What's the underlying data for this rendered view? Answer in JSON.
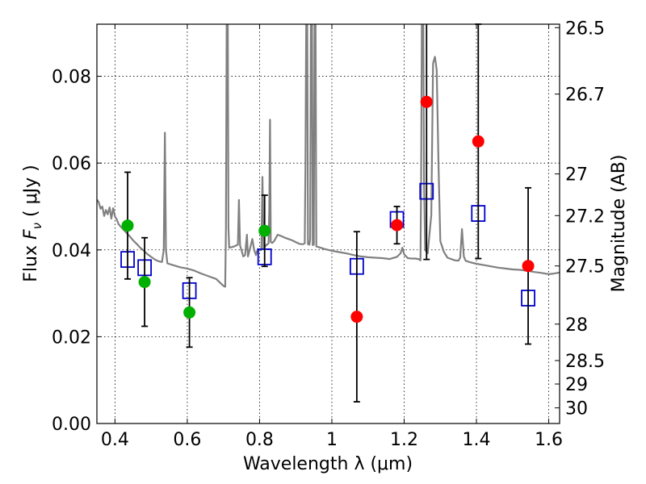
{
  "chart_data": {
    "type": "scatter",
    "xlabel": "Wavelength  λ (μm)",
    "ylabel_prefix": "Flux  ",
    "ylabel_var": "F",
    "ylabel_sub": "ν",
    "ylabel_suffix": "  ( μJy )",
    "y2label": "Magnitude (AB)",
    "xlim": [
      0.35,
      1.63
    ],
    "ylim": [
      0.0,
      0.092
    ],
    "grid": true,
    "xticks": [
      0.4,
      0.6,
      0.8,
      1.0,
      1.2,
      1.4,
      1.6
    ],
    "xtick_labels": [
      "0.4",
      "0.6",
      "0.8",
      "1",
      "1.2",
      "1.4",
      "1.6"
    ],
    "yticks": [
      0.0,
      0.02,
      0.04,
      0.06,
      0.08
    ],
    "ytick_labels": [
      "0.00",
      "0.02",
      "0.04",
      "0.06",
      "0.08"
    ],
    "mag_ticks": [
      {
        "label": "26.5",
        "flux": 0.0912
      },
      {
        "label": "26.7",
        "flux": 0.0759
      },
      {
        "label": "27",
        "flux": 0.0575
      },
      {
        "label": "27.2",
        "flux": 0.0479
      },
      {
        "label": "27.5",
        "flux": 0.0363
      },
      {
        "label": "28",
        "flux": 0.0229
      },
      {
        "label": "28.5",
        "flux": 0.0145
      },
      {
        "label": "29",
        "flux": 0.0091
      },
      {
        "label": "30",
        "flux": 0.0036
      }
    ],
    "series": [
      {
        "name": "model spectrum",
        "kind": "line",
        "color": "#808080",
        "points": [
          [
            0.35,
            0.0516
          ],
          [
            0.355,
            0.051
          ],
          [
            0.36,
            0.0495
          ],
          [
            0.365,
            0.05
          ],
          [
            0.37,
            0.0478
          ],
          [
            0.375,
            0.0492
          ],
          [
            0.38,
            0.0482
          ],
          [
            0.385,
            0.0498
          ],
          [
            0.39,
            0.0472
          ],
          [
            0.395,
            0.0496
          ],
          [
            0.4,
            0.0477
          ],
          [
            0.405,
            0.047
          ],
          [
            0.41,
            0.0459
          ],
          [
            0.42,
            0.045
          ],
          [
            0.43,
            0.0441
          ],
          [
            0.44,
            0.0432
          ],
          [
            0.45,
            0.0422
          ],
          [
            0.46,
            0.0414
          ],
          [
            0.47,
            0.0405
          ],
          [
            0.48,
            0.0398
          ],
          [
            0.49,
            0.039
          ],
          [
            0.5,
            0.0384
          ],
          [
            0.51,
            0.0378
          ],
          [
            0.52,
            0.0374
          ],
          [
            0.53,
            0.0372
          ],
          [
            0.535,
            0.04
          ],
          [
            0.538,
            0.067
          ],
          [
            0.541,
            0.04
          ],
          [
            0.545,
            0.0369
          ],
          [
            0.56,
            0.0365
          ],
          [
            0.58,
            0.036
          ],
          [
            0.6,
            0.0357
          ],
          [
            0.62,
            0.0352
          ],
          [
            0.64,
            0.0345
          ],
          [
            0.66,
            0.0339
          ],
          [
            0.68,
            0.0333
          ],
          [
            0.7,
            0.0317
          ],
          [
            0.705,
            0.0315
          ],
          [
            0.707,
            0.045
          ],
          [
            0.709,
            0.092
          ],
          [
            0.712,
            0.092
          ],
          [
            0.714,
            0.045
          ],
          [
            0.716,
            0.0405
          ],
          [
            0.73,
            0.0408
          ],
          [
            0.74,
            0.0412
          ],
          [
            0.743,
            0.0515
          ],
          [
            0.746,
            0.041
          ],
          [
            0.755,
            0.0385
          ],
          [
            0.76,
            0.0388
          ],
          [
            0.765,
            0.0435
          ],
          [
            0.768,
            0.0385
          ],
          [
            0.775,
            0.0408
          ],
          [
            0.78,
            0.0425
          ],
          [
            0.785,
            0.04
          ],
          [
            0.79,
            0.0388
          ],
          [
            0.795,
            0.0402
          ],
          [
            0.8,
            0.0399
          ],
          [
            0.805,
            0.04
          ],
          [
            0.808,
            0.0568
          ],
          [
            0.811,
            0.0402
          ],
          [
            0.815,
            0.0408
          ],
          [
            0.82,
            0.0412
          ],
          [
            0.825,
            0.0415
          ],
          [
            0.827,
            0.0495
          ],
          [
            0.829,
            0.07
          ],
          [
            0.831,
            0.0418
          ],
          [
            0.835,
            0.0416
          ],
          [
            0.84,
            0.042
          ],
          [
            0.85,
            0.0435
          ],
          [
            0.86,
            0.0432
          ],
          [
            0.87,
            0.0428
          ],
          [
            0.88,
            0.0425
          ],
          [
            0.89,
            0.0422
          ],
          [
            0.9,
            0.0418
          ],
          [
            0.91,
            0.0414
          ],
          [
            0.92,
            0.0413
          ],
          [
            0.925,
            0.0415
          ],
          [
            0.927,
            0.06
          ],
          [
            0.929,
            0.092
          ],
          [
            0.932,
            0.092
          ],
          [
            0.934,
            0.0413
          ],
          [
            0.938,
            0.0412
          ],
          [
            0.94,
            0.0425
          ],
          [
            0.942,
            0.092
          ],
          [
            0.945,
            0.092
          ],
          [
            0.947,
            0.0411
          ],
          [
            0.95,
            0.0412
          ],
          [
            0.952,
            0.092
          ],
          [
            0.955,
            0.092
          ],
          [
            0.957,
            0.0408
          ],
          [
            0.965,
            0.0406
          ],
          [
            0.98,
            0.0402
          ],
          [
            1.0,
            0.0398
          ],
          [
            1.02,
            0.0395
          ],
          [
            1.04,
            0.0392
          ],
          [
            1.06,
            0.0388
          ],
          [
            1.08,
            0.0385
          ],
          [
            1.1,
            0.0383
          ],
          [
            1.12,
            0.0382
          ],
          [
            1.14,
            0.0381
          ],
          [
            1.16,
            0.0379
          ],
          [
            1.18,
            0.0384
          ],
          [
            1.19,
            0.0392
          ],
          [
            1.195,
            0.0405
          ],
          [
            1.2,
            0.039
          ],
          [
            1.21,
            0.0381
          ],
          [
            1.22,
            0.038
          ],
          [
            1.23,
            0.038
          ],
          [
            1.24,
            0.0379
          ],
          [
            1.245,
            0.0376
          ],
          [
            1.247,
            0.055
          ],
          [
            1.249,
            0.092
          ],
          [
            1.253,
            0.092
          ],
          [
            1.255,
            0.056
          ],
          [
            1.258,
            0.04
          ],
          [
            1.265,
            0.0392
          ],
          [
            1.275,
            0.048
          ],
          [
            1.28,
            0.083
          ],
          [
            1.285,
            0.0845
          ],
          [
            1.29,
            0.0815
          ],
          [
            1.295,
            0.06
          ],
          [
            1.3,
            0.042
          ],
          [
            1.31,
            0.0395
          ],
          [
            1.32,
            0.0382
          ],
          [
            1.34,
            0.0376
          ],
          [
            1.35,
            0.0375
          ],
          [
            1.355,
            0.0382
          ],
          [
            1.36,
            0.0448
          ],
          [
            1.365,
            0.0385
          ],
          [
            1.37,
            0.0375
          ],
          [
            1.38,
            0.0372
          ],
          [
            1.4,
            0.0368
          ],
          [
            1.42,
            0.0365
          ],
          [
            1.44,
            0.0362
          ],
          [
            1.46,
            0.0359
          ],
          [
            1.48,
            0.0357
          ],
          [
            1.5,
            0.0355
          ],
          [
            1.52,
            0.0354
          ],
          [
            1.54,
            0.0352
          ],
          [
            1.56,
            0.0349
          ],
          [
            1.58,
            0.0347
          ],
          [
            1.6,
            0.0344
          ],
          [
            1.61,
            0.0345
          ],
          [
            1.63,
            0.0348
          ]
        ]
      },
      {
        "name": "model photometry",
        "kind": "open-square",
        "color": "#0000cc",
        "points": [
          [
            0.435,
            0.0378
          ],
          [
            0.482,
            0.0359
          ],
          [
            0.606,
            0.0306
          ],
          [
            0.814,
            0.0384
          ],
          [
            1.069,
            0.0362
          ],
          [
            1.18,
            0.047
          ],
          [
            1.262,
            0.0535
          ],
          [
            1.405,
            0.0484
          ],
          [
            1.543,
            0.0289
          ]
        ]
      },
      {
        "name": "observed (green)",
        "kind": "filled-circle",
        "color": "#00b000",
        "points": [
          {
            "x": 0.435,
            "y": 0.0456,
            "err": 0.0123
          },
          {
            "x": 0.482,
            "y": 0.0326,
            "err": 0.0102
          },
          {
            "x": 0.606,
            "y": 0.0256,
            "err": 0.008
          },
          {
            "x": 0.814,
            "y": 0.0444,
            "err": 0.0082
          }
        ]
      },
      {
        "name": "observed (red)",
        "kind": "filled-circle",
        "color": "#ff0000",
        "points": [
          {
            "x": 1.069,
            "y": 0.0246,
            "err": 0.0196
          },
          {
            "x": 1.18,
            "y": 0.0457,
            "err": 0.0043
          },
          {
            "x": 1.262,
            "y": 0.0741,
            "err": 0.0363
          },
          {
            "x": 1.405,
            "y": 0.065,
            "err": 0.027
          },
          {
            "x": 1.543,
            "y": 0.0363,
            "err": 0.018
          }
        ]
      }
    ]
  }
}
